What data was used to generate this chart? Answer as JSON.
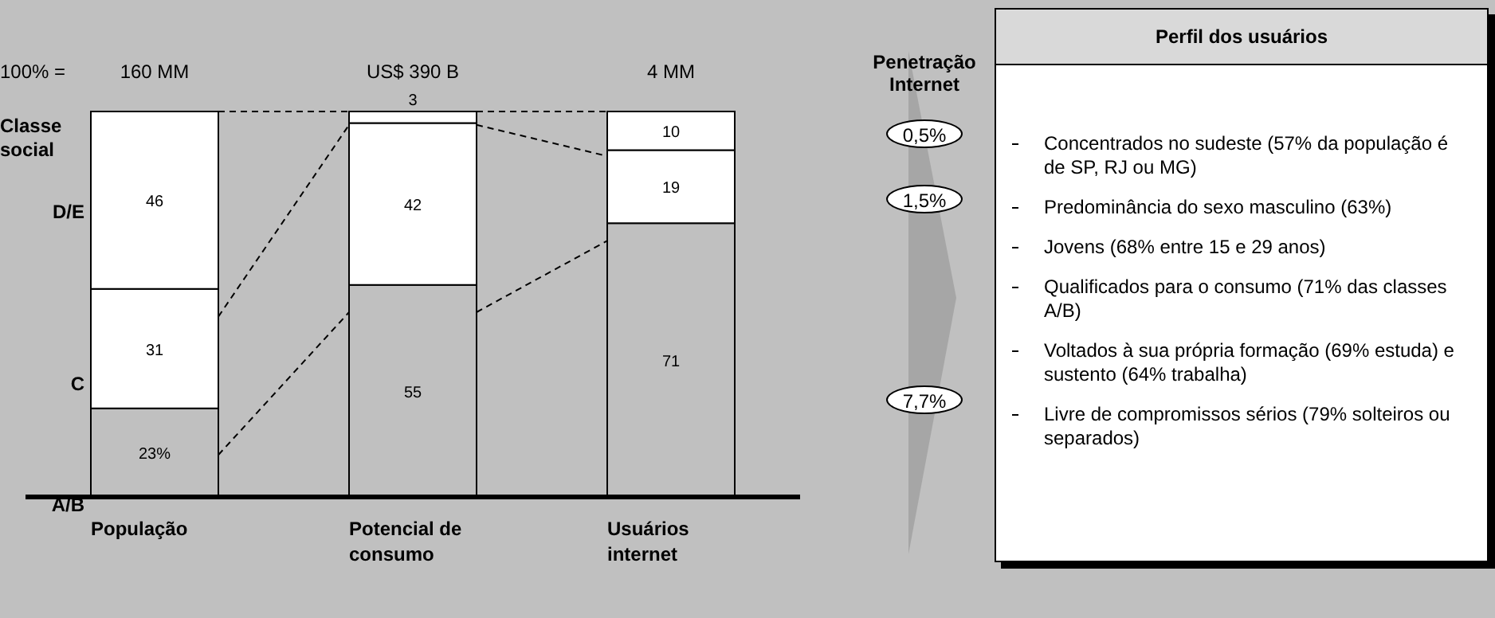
{
  "chart_data": [
    {
      "type": "bar",
      "stacked": true,
      "categories": [
        "População",
        "Potencial de consumo",
        "Usuários internet"
      ],
      "legend_title": "Classe social",
      "legend": "left",
      "tick_labels": "x",
      "series": [
        {
          "name": "A/B",
          "color": "#c0c0c0",
          "values": [
            23,
            55,
            71
          ],
          "value_labels": [
            "23%",
            "55",
            "71"
          ]
        },
        {
          "name": "C",
          "color": "#ffffff",
          "values": [
            31,
            42,
            19
          ],
          "value_labels": [
            "31",
            "42",
            "19"
          ]
        },
        {
          "name": "D/E",
          "color": "#ffffff",
          "values": [
            46,
            3,
            10
          ],
          "value_labels": [
            "46",
            "3",
            "10"
          ]
        }
      ],
      "annotations": [
        "100% =",
        "Penetração Internet",
        "160 MM",
        "US$ 390 B",
        "4 MM",
        "7,7%",
        "1,5%",
        "0,5%"
      ]
    },
    {
      "type": "other",
      "title": "Perfil dos usuários",
      "annotations": [
        "Concentrados no sudeste (57% da população é de SP, RJ ou MG)",
        "Predominância do sexo masculino (63%)",
        "Jovens (68% entre 15 e 29 anos)",
        "Qualificados para o consumo (71% das classes A/B)",
        "Voltados à sua própria formação (69% estuda) e sustento (64% trabalha)",
        "Livre de compromissos sérios (79% solteiros ou separados)"
      ]
    }
  ]
}
